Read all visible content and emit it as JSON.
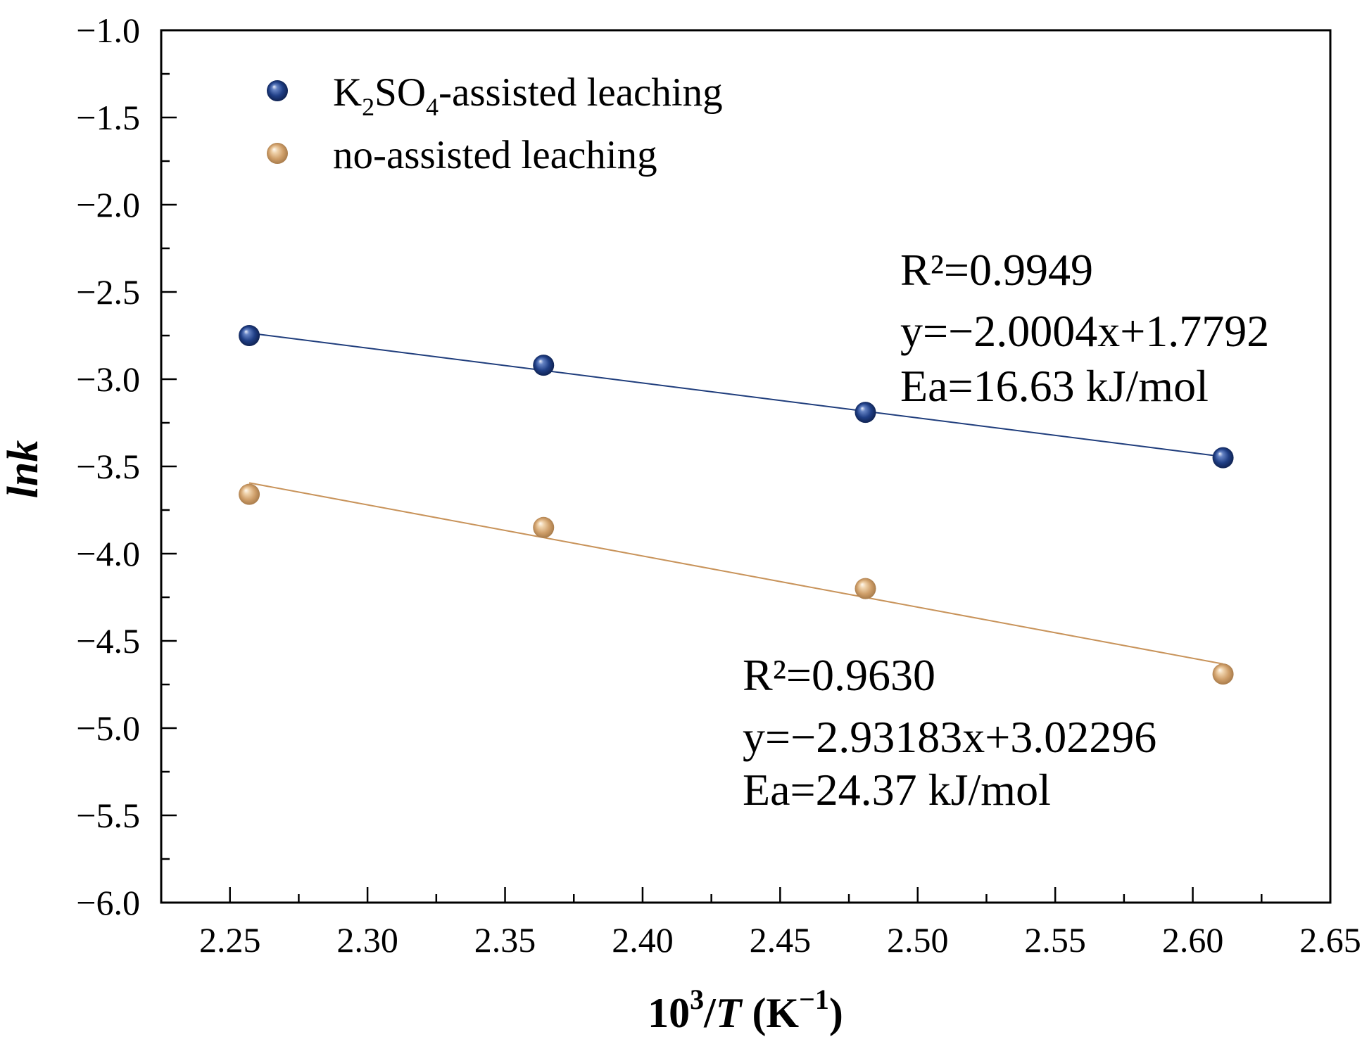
{
  "chart_data": {
    "type": "scatter",
    "title": "",
    "xlabel_parts": [
      "10",
      "3",
      "/",
      "T",
      " (K",
      "−1",
      ")"
    ],
    "ylabel": "lnk",
    "xlim": [
      2.225,
      2.65
    ],
    "ylim": [
      -6.0,
      -1.0
    ],
    "grid": false,
    "legend_position": "top-left",
    "xticks": [
      {
        "value": 2.25,
        "label": "2.25"
      },
      {
        "value": 2.3,
        "label": "2.30"
      },
      {
        "value": 2.35,
        "label": "2.35"
      },
      {
        "value": 2.4,
        "label": "2.40"
      },
      {
        "value": 2.45,
        "label": "2.45"
      },
      {
        "value": 2.5,
        "label": "2.50"
      },
      {
        "value": 2.55,
        "label": "2.55"
      },
      {
        "value": 2.6,
        "label": "2.60"
      },
      {
        "value": 2.65,
        "label": "2.65"
      }
    ],
    "yticks": [
      {
        "value": -1.0,
        "label": "−1.0"
      },
      {
        "value": -1.5,
        "label": "−1.5"
      },
      {
        "value": -2.0,
        "label": "−2.0"
      },
      {
        "value": -2.5,
        "label": "−2.5"
      },
      {
        "value": -3.0,
        "label": "−3.0"
      },
      {
        "value": -3.5,
        "label": "−3.5"
      },
      {
        "value": -4.0,
        "label": "−4.0"
      },
      {
        "value": -4.5,
        "label": "−4.5"
      },
      {
        "value": -5.0,
        "label": "−5.0"
      },
      {
        "value": -5.5,
        "label": "−5.5"
      },
      {
        "value": -6.0,
        "label": "−6.0"
      }
    ],
    "series": [
      {
        "name_parts": [
          "K",
          "2",
          "SO",
          "4",
          "-assisted leaching"
        ],
        "color": "#1f3d7c",
        "points": [
          {
            "x": 2.257,
            "y": -2.75
          },
          {
            "x": 2.364,
            "y": -2.92
          },
          {
            "x": 2.481,
            "y": -3.19
          },
          {
            "x": 2.611,
            "y": -3.45
          }
        ],
        "fit": {
          "slope": -2.0004,
          "intercept": 1.7792,
          "x_range": [
            2.257,
            2.611
          ]
        },
        "annotation": [
          "R²=0.9949",
          "y=−2.0004x+1.7792",
          "Ea=16.63 kJ/mol"
        ]
      },
      {
        "name_parts": [
          "no-assisted leaching"
        ],
        "color": "#c8935a",
        "points": [
          {
            "x": 2.257,
            "y": -3.66
          },
          {
            "x": 2.364,
            "y": -3.85
          },
          {
            "x": 2.481,
            "y": -4.2
          },
          {
            "x": 2.611,
            "y": -4.69
          }
        ],
        "fit": {
          "slope": -2.93183,
          "intercept": 3.02296,
          "x_range": [
            2.257,
            2.611
          ]
        },
        "annotation": [
          "R²=0.9630",
          "y=−2.93183x+3.02296",
          "Ea=24.37 kJ/mol"
        ]
      }
    ]
  }
}
